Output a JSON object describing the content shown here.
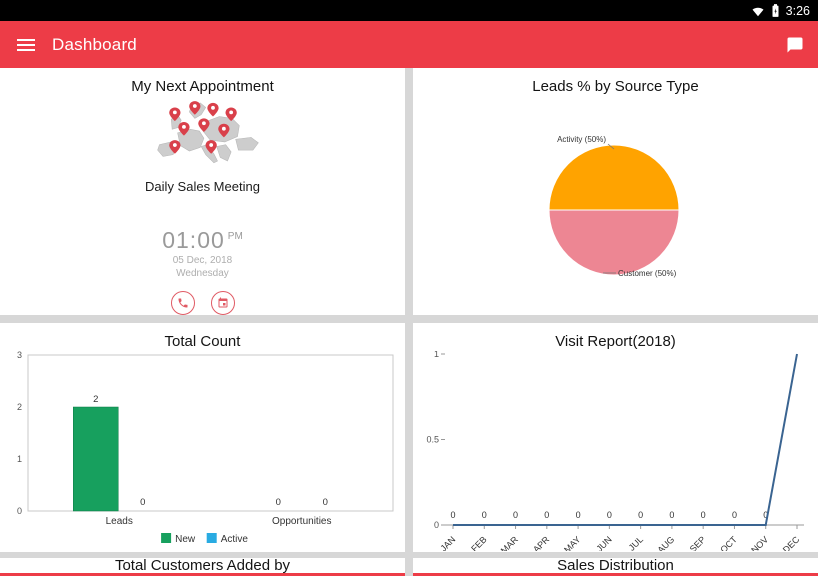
{
  "status_bar": {
    "time": "3:26"
  },
  "app_bar": {
    "title": "Dashboard"
  },
  "cards": {
    "appointment": {
      "title": "My Next Appointment",
      "subject": "Daily Sales Meeting",
      "time": "01:00",
      "meridiem": "PM",
      "date": "05 Dec, 2018",
      "weekday": "Wednesday"
    },
    "bottom_left": {
      "title": "Total Customers Added by"
    },
    "bottom_right": {
      "title": "Sales Distribution"
    }
  },
  "colors": {
    "app_bar": "#ED3C47",
    "accent_red": "#ED3C47",
    "icon_red": "#E05A64",
    "pie_activity": "#FFA300",
    "pie_customer": "#ED8693",
    "bar_new": "#17A05E",
    "bar_active": "#29ABE2",
    "line": "#3A6491"
  },
  "chart_data": [
    {
      "type": "pie",
      "title": "Leads % by Source Type",
      "labels": [
        "Activity (50%)",
        "Customer (50%)"
      ],
      "values": [
        50,
        50
      ],
      "colors": [
        "#FFA300",
        "#ED8693"
      ],
      "legend_position": "none"
    },
    {
      "type": "bar",
      "title": "Total Count",
      "categories": [
        "Leads",
        "Opportunities"
      ],
      "series": [
        {
          "name": "New",
          "color": "#17A05E",
          "values": [
            2,
            0
          ]
        },
        {
          "name": "Active",
          "color": "#29ABE2",
          "values": [
            0,
            0
          ]
        }
      ],
      "ylim": [
        0,
        3
      ],
      "yticks": [
        0,
        1,
        2,
        3
      ],
      "grid": false,
      "data_labels": true,
      "legend_position": "bottom"
    },
    {
      "type": "line",
      "title": "Visit Report(2018)",
      "x": [
        "JAN",
        "FEB",
        "MAR",
        "APR",
        "MAY",
        "JUN",
        "JUL",
        "AUG",
        "SEP",
        "OCT",
        "NOV",
        "DEC"
      ],
      "values": [
        0,
        0,
        0,
        0,
        0,
        0,
        0,
        0,
        0,
        0,
        0,
        1
      ],
      "ylim": [
        0,
        1
      ],
      "yticks": [
        0,
        0.5,
        1
      ],
      "color": "#3A6491",
      "grid": false,
      "point_labels": [
        "0",
        "0",
        "0",
        "0",
        "0",
        "0",
        "0",
        "0",
        "0",
        "0",
        "0",
        ""
      ]
    }
  ]
}
